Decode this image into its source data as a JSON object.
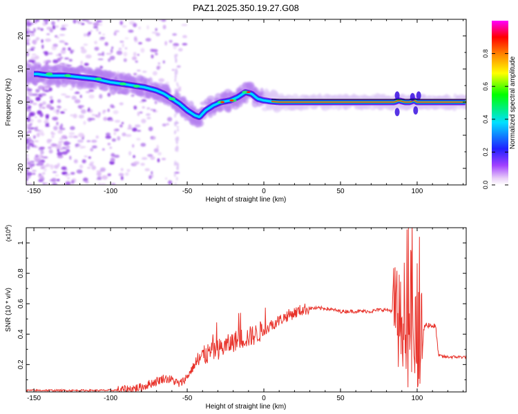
{
  "figure": {
    "title": "PAZ1.2025.350.19.27.G08"
  },
  "chart_data": [
    {
      "type": "heatmap",
      "xlabel": "Height of straight line (km)",
      "ylabel": "Frequency (Hz)",
      "xlim": [
        -155,
        132
      ],
      "ylim": [
        -25,
        25
      ],
      "xticks": [
        -150,
        -100,
        -50,
        0,
        50,
        100
      ],
      "yticks": [
        -20,
        -10,
        0,
        10,
        20
      ],
      "ridge": {
        "x": [
          -155,
          -148,
          -140,
          -130,
          -120,
          -110,
          -100,
          -92,
          -85,
          -78,
          -70,
          -65,
          -60,
          -55,
          -50,
          -45,
          -42,
          -38,
          -33,
          -28,
          -22,
          -17,
          -12,
          -8,
          -4,
          0,
          5,
          10,
          20,
          40,
          60,
          80,
          85,
          88,
          92,
          95,
          98,
          100,
          102,
          105,
          110,
          120,
          132
        ],
        "y": [
          8.5,
          8.5,
          8,
          8,
          7.5,
          7,
          6,
          5.5,
          5,
          4.5,
          3.5,
          2.5,
          1,
          -0.5,
          -2.5,
          -4,
          -4.5,
          -2.5,
          -1,
          0,
          0.5,
          1.5,
          3,
          2.5,
          1,
          0.5,
          0.2,
          0,
          0,
          0,
          0,
          0,
          0,
          0.5,
          0,
          0,
          0.5,
          0,
          0,
          0,
          0,
          0,
          0
        ]
      },
      "colorbar": {
        "label": "Normalized spectral amplitude",
        "range": [
          0,
          1
        ],
        "ticks": [
          "0.0",
          "0.2",
          "0.4",
          "0.6",
          "0.8"
        ],
        "colors": [
          "#ffffff",
          "#e6b8f7",
          "#8000ff",
          "#0000ff",
          "#00ffff",
          "#00ff00",
          "#ffff00",
          "#ff8000",
          "#ff0000",
          "#ff00ff"
        ]
      }
    },
    {
      "type": "line",
      "xlabel": "Height of straight line (km)",
      "ylabel": "SNR (10 * v/v)",
      "scale_label": "(x10^4)",
      "xlim": [
        -155,
        132
      ],
      "ylim": [
        0.02,
        1.1
      ],
      "xticks": [
        -150,
        -100,
        -50,
        0,
        50,
        100
      ],
      "yticks": [
        0.2,
        0.4,
        0.6,
        0.8,
        1.0
      ],
      "series": [
        {
          "color": "#e8322a",
          "x": [
            -155,
            -140,
            -120,
            -100,
            -90,
            -80,
            -75,
            -70,
            -65,
            -60,
            -55,
            -50,
            -45,
            -40,
            -35,
            -30,
            -25,
            -20,
            -15,
            -10,
            -5,
            0,
            5,
            10,
            15,
            20,
            25,
            30,
            35,
            40,
            45,
            50,
            55,
            60,
            65,
            70,
            75,
            80,
            85,
            88,
            90,
            92,
            94,
            96,
            98,
            100,
            102,
            105,
            108,
            112,
            114,
            118,
            125,
            132
          ],
          "y": [
            0.03,
            0.03,
            0.03,
            0.03,
            0.035,
            0.05,
            0.07,
            0.09,
            0.11,
            0.1,
            0.07,
            0.12,
            0.2,
            0.25,
            0.28,
            0.3,
            0.32,
            0.35,
            0.37,
            0.38,
            0.4,
            0.43,
            0.46,
            0.49,
            0.52,
            0.54,
            0.56,
            0.57,
            0.57,
            0.57,
            0.56,
            0.55,
            0.55,
            0.55,
            0.55,
            0.55,
            0.56,
            0.56,
            0.55,
            0.5,
            0.45,
            0.6,
            0.3,
            0.7,
            0.2,
            0.55,
            0.3,
            0.46,
            0.46,
            0.45,
            0.26,
            0.25,
            0.25,
            0.25
          ]
        }
      ]
    }
  ]
}
